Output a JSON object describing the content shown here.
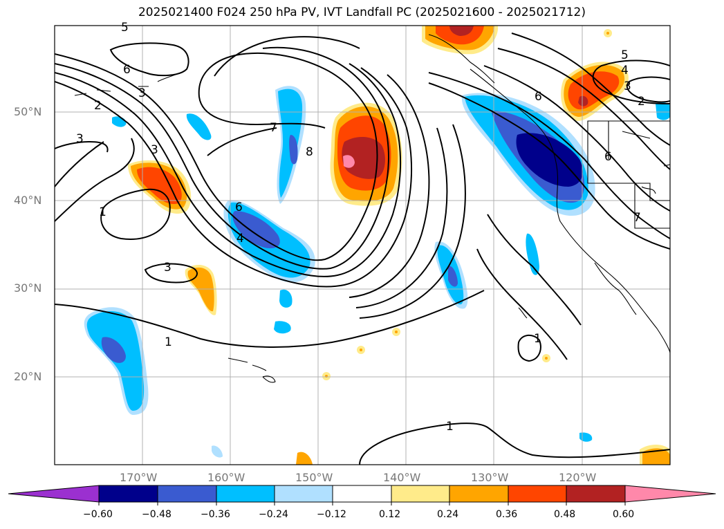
{
  "title": "2025021400 F024 250 hPa PV, IVT Landfall PC (2025021600 - 2025021712)",
  "latitude_labels": [
    "50°N",
    "40°N",
    "30°N",
    "20°N"
  ],
  "longitude_labels": [
    "170°W",
    "160°W",
    "150°W",
    "140°W",
    "130°W",
    "120°W"
  ],
  "colorbar": {
    "ticks": [
      "−0.60",
      "−0.48",
      "−0.36",
      "−0.24",
      "−0.12",
      "0.12",
      "0.24",
      "0.36",
      "0.48",
      "0.60"
    ],
    "colors": [
      "#9b30d0",
      "#00008b",
      "#3a5bd0",
      "#00bfff",
      "#b0e0ff",
      "#ffffff",
      "#ffeb8a",
      "#ffa500",
      "#ff4500",
      "#b22222",
      "#ff88aa"
    ]
  },
  "contour_labels": [
    "5",
    "6",
    "3",
    "2",
    "3",
    "3",
    "1",
    "7",
    "8",
    "6",
    "4",
    "3",
    "1",
    "1",
    "1",
    "6",
    "5",
    "4",
    "3",
    "2",
    "6",
    "7"
  ],
  "fill_colors": {
    "neg_light": "#b0e0ff",
    "neg_mid": "#00bfff",
    "neg_strong": "#3a5bd0",
    "neg_max": "#00008b",
    "pos_light": "#ffeb8a",
    "pos_mid": "#ffa500",
    "pos_strong": "#ff4500",
    "pos_darker": "#b22222",
    "pos_max": "#ff88aa"
  }
}
